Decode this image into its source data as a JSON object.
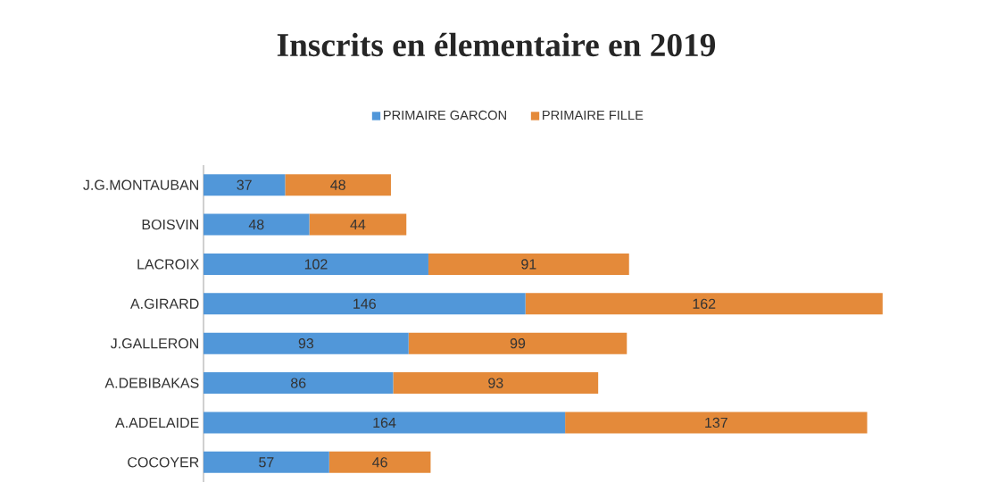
{
  "chart_data": {
    "type": "bar",
    "orientation": "horizontal",
    "stacked": true,
    "title": "Inscrits en élementaire en 2019",
    "categories": [
      "J.G.MONTAUBAN",
      "BOISVIN",
      "LACROIX",
      "A.GIRARD",
      "J.GALLERON",
      "A.DEBIBAKAS",
      "A.ADELAIDE",
      "COCOYER"
    ],
    "series": [
      {
        "name": "PRIMAIRE GARCON",
        "color": "#5197d9",
        "values": [
          37,
          48,
          102,
          146,
          93,
          86,
          164,
          57
        ]
      },
      {
        "name": "PRIMAIRE FILLE",
        "color": "#e48a3a",
        "values": [
          48,
          44,
          91,
          162,
          99,
          93,
          137,
          46
        ]
      }
    ],
    "data_labels": true,
    "legend": "top"
  }
}
